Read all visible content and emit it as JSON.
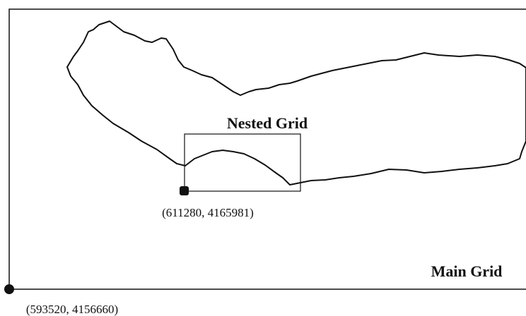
{
  "labels": {
    "nested_grid": "Nested Grid",
    "main_grid": "Main Grid",
    "nested_origin": "(611280, 4165981)",
    "main_origin": "(593520, 4156660)"
  }
}
